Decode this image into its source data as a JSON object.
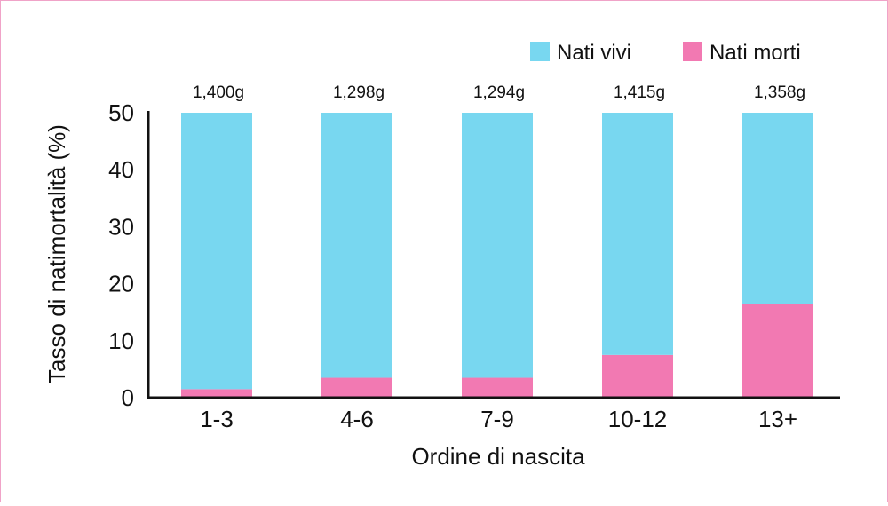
{
  "chart_data": {
    "type": "bar",
    "stacked": true,
    "title": "",
    "xlabel": "Ordine di nascita",
    "ylabel": "Tasso di natimortalità (%)",
    "ylim": [
      0,
      50
    ],
    "yticks": [
      0,
      10,
      20,
      30,
      40,
      50
    ],
    "grid": false,
    "legend_position": "top-right",
    "categories": [
      "1-3",
      "4-6",
      "7-9",
      "10-12",
      "13+"
    ],
    "series": [
      {
        "name": "Nati morti",
        "color": "#f279b2",
        "values": [
          1.5,
          3.5,
          3.5,
          7.5,
          16.5
        ]
      },
      {
        "name": "Nati vivi",
        "color": "#78d7f0",
        "values": [
          48.5,
          46.5,
          46.5,
          42.5,
          33.5
        ]
      }
    ],
    "data_labels": [
      "1,400g",
      "1,298g",
      "1,294g",
      "1,415g",
      "1,358g"
    ]
  }
}
